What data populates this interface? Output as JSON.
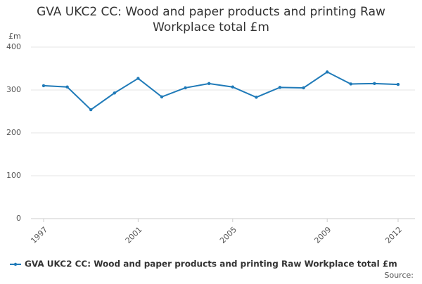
{
  "chart_data": {
    "type": "line",
    "title": "GVA UKC2 CC: Wood and paper products and printing Raw Workplace total £m",
    "y_label": "£m",
    "source": "Source:",
    "x": [
      1997,
      1998,
      1999,
      2000,
      2001,
      2002,
      2003,
      2004,
      2005,
      2006,
      2007,
      2008,
      2009,
      2010,
      2011,
      2012
    ],
    "series": [
      {
        "name": "GVA UKC2 CC: Wood and paper products and printing Raw Workplace total £m",
        "color": "#1f7ab8",
        "values": [
          310,
          307,
          254,
          293,
          327,
          284,
          305,
          315,
          307,
          283,
          306,
          305,
          342,
          314,
          315,
          313
        ]
      }
    ],
    "xlim": [
      1997,
      2012
    ],
    "xticks": [
      1997,
      2001,
      2005,
      2009,
      2012
    ],
    "ylim": [
      0,
      400
    ],
    "yticks": [
      0,
      100,
      200,
      300,
      400
    ],
    "grid": true
  }
}
